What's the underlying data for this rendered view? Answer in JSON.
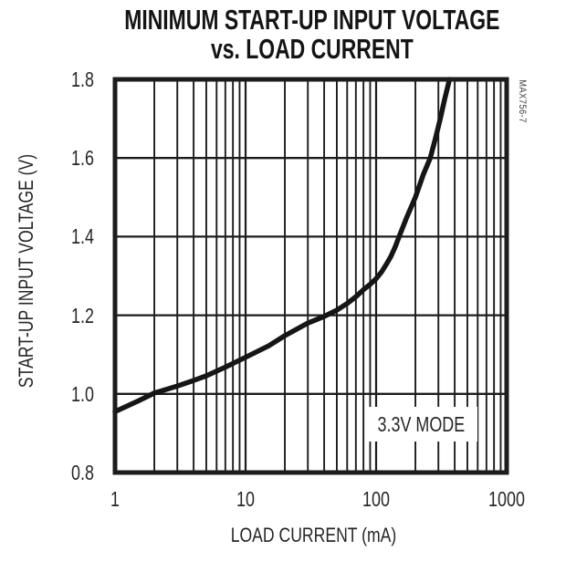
{
  "title": {
    "line1": "MINIMUM START-UP INPUT VOLTAGE",
    "line2": "vs. LOAD CURRENT"
  },
  "figure_code": "MAX756-7",
  "annotation": {
    "label": "3.3V MODE"
  },
  "colors": {
    "ink": "#1c1c1c",
    "curve": "#161616",
    "background": "#ffffff",
    "label_text": "#262626"
  },
  "chart_data": {
    "type": "line",
    "title": "MINIMUM START-UP INPUT VOLTAGE vs. LOAD CURRENT",
    "xlabel": "LOAD CURRENT (mA)",
    "ylabel": "START-UP INPUT VOLTAGE (V)",
    "x_scale": "log",
    "y_scale": "linear",
    "xlim": [
      1,
      1000
    ],
    "ylim": [
      0.8,
      1.8
    ],
    "x_ticks": [
      1,
      10,
      100,
      1000
    ],
    "x_tick_labels": [
      "1",
      "10",
      "100",
      "1000"
    ],
    "y_ticks": [
      0.8,
      1.0,
      1.2,
      1.4,
      1.6,
      1.8
    ],
    "y_tick_labels": [
      "0.8",
      "1.0",
      "1.2",
      "1.4",
      "1.6",
      "1.8"
    ],
    "grid": "full grid: log minor verticals (2-9 each decade), horizontal majors every 0.2 V",
    "legend_position": "none",
    "series": [
      {
        "name": "3.3V MODE",
        "points": [
          [
            1,
            0.955
          ],
          [
            1.5,
            0.982
          ],
          [
            2,
            1.002
          ],
          [
            3,
            1.02
          ],
          [
            4,
            1.034
          ],
          [
            5,
            1.046
          ],
          [
            7,
            1.068
          ],
          [
            10,
            1.093
          ],
          [
            15,
            1.122
          ],
          [
            20,
            1.148
          ],
          [
            30,
            1.18
          ],
          [
            40,
            1.197
          ],
          [
            50,
            1.213
          ],
          [
            60,
            1.23
          ],
          [
            70,
            1.247
          ],
          [
            80,
            1.265
          ],
          [
            90,
            1.279
          ],
          [
            100,
            1.293
          ],
          [
            110,
            1.31
          ],
          [
            120,
            1.33
          ],
          [
            130,
            1.35
          ],
          [
            140,
            1.374
          ],
          [
            150,
            1.4
          ],
          [
            170,
            1.446
          ],
          [
            200,
            1.5
          ],
          [
            230,
            1.558
          ],
          [
            260,
            1.6
          ],
          [
            285,
            1.65
          ],
          [
            310,
            1.7
          ],
          [
            335,
            1.75
          ],
          [
            365,
            1.8
          ]
        ]
      }
    ]
  }
}
